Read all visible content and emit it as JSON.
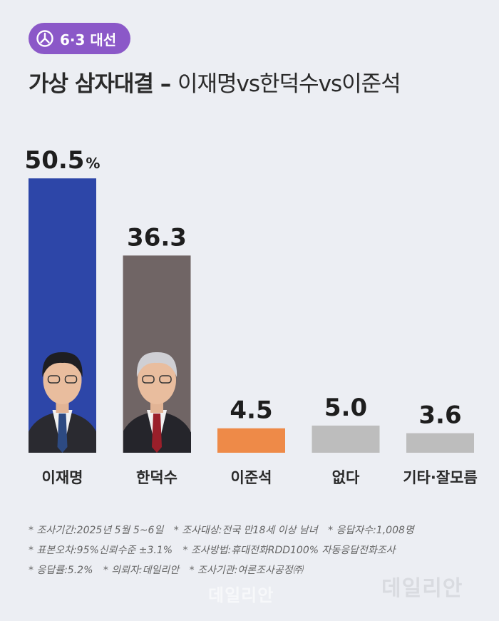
{
  "badge": {
    "label": "6·3 대선",
    "icon": "ballot-stamp-icon"
  },
  "title": {
    "main": "가상 삼자대결 – ",
    "sub": "이재명vs한덕수vs이준석"
  },
  "chart_data": {
    "type": "bar",
    "categories": [
      "이재명",
      "한덕수",
      "이준석",
      "없다",
      "기타·잘모름"
    ],
    "values": [
      50.5,
      36.3,
      4.5,
      5.0,
      3.6
    ],
    "value_labels": [
      "50.5",
      "36.3",
      "4.5",
      "5.0",
      "3.6"
    ],
    "value_unit": "%",
    "colors": [
      "#2d46a8",
      "#706565",
      "#ee8a48",
      "#bdbdbd",
      "#bdbdbd"
    ],
    "photos": [
      "candidate-photo-icon",
      "candidate-photo-icon",
      null,
      null,
      null
    ],
    "title": "",
    "xlabel": "",
    "ylabel": ""
  },
  "notes": [
    [
      "* 조사기간:2025년 5월 5~6일",
      "* 조사대상:전국 만18세 이상 남녀",
      "* 응답자수:1,008명"
    ],
    [
      "* 표본오차:95%신뢰수준 ±3.1%",
      "* 조사방법:휴대전화RDD100% 자동응답전화조사"
    ],
    [
      "* 응답률:5.2%",
      "* 의뢰자:데일리안",
      "* 조사기관:여론조사공정㈜"
    ]
  ],
  "watermarks": [
    "데일리안",
    "데일리안"
  ]
}
